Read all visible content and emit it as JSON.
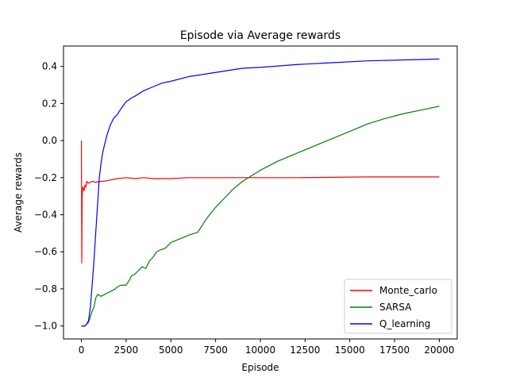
{
  "chart_data": {
    "type": "line",
    "title": "Episode via Average rewards",
    "xlabel": "Episode",
    "ylabel": "Average rewards",
    "xlim": [
      -1000,
      21000
    ],
    "ylim": [
      -1.07,
      0.51
    ],
    "xticks": [
      0,
      2500,
      5000,
      7500,
      10000,
      12500,
      15000,
      17500,
      20000
    ],
    "yticks": [
      -1.0,
      -0.8,
      -0.6,
      -0.4,
      -0.2,
      0.0,
      0.2,
      0.4
    ],
    "grid": false,
    "legend_position": "lower-right",
    "series": [
      {
        "name": "Monte_carlo",
        "color": "#ff0000",
        "points": [
          [
            0,
            0.0
          ],
          [
            10,
            -0.3
          ],
          [
            20,
            -0.66
          ],
          [
            40,
            -0.3
          ],
          [
            80,
            -0.25
          ],
          [
            150,
            -0.27
          ],
          [
            200,
            -0.24
          ],
          [
            250,
            -0.25
          ],
          [
            300,
            -0.22
          ],
          [
            400,
            -0.23
          ],
          [
            600,
            -0.22
          ],
          [
            800,
            -0.225
          ],
          [
            1000,
            -0.22
          ],
          [
            1200,
            -0.22
          ],
          [
            1500,
            -0.215
          ],
          [
            2000,
            -0.205
          ],
          [
            2500,
            -0.2
          ],
          [
            3000,
            -0.205
          ],
          [
            3500,
            -0.2
          ],
          [
            4000,
            -0.205
          ],
          [
            5000,
            -0.205
          ],
          [
            6000,
            -0.2
          ],
          [
            7000,
            -0.2
          ],
          [
            8000,
            -0.2
          ],
          [
            9000,
            -0.2
          ],
          [
            10000,
            -0.2
          ],
          [
            12000,
            -0.2
          ],
          [
            14000,
            -0.198
          ],
          [
            16000,
            -0.196
          ],
          [
            18000,
            -0.196
          ],
          [
            20000,
            -0.196
          ]
        ]
      },
      {
        "name": "SARSA",
        "color": "#008000",
        "points": [
          [
            0,
            -1.0
          ],
          [
            200,
            -1.0
          ],
          [
            400,
            -0.98
          ],
          [
            500,
            -0.95
          ],
          [
            600,
            -0.92
          ],
          [
            700,
            -0.9
          ],
          [
            800,
            -0.85
          ],
          [
            900,
            -0.83
          ],
          [
            1100,
            -0.84
          ],
          [
            1300,
            -0.83
          ],
          [
            1500,
            -0.82
          ],
          [
            1700,
            -0.81
          ],
          [
            1900,
            -0.8
          ],
          [
            2000,
            -0.79
          ],
          [
            2200,
            -0.78
          ],
          [
            2500,
            -0.78
          ],
          [
            2700,
            -0.75
          ],
          [
            2800,
            -0.73
          ],
          [
            3000,
            -0.72
          ],
          [
            3200,
            -0.7
          ],
          [
            3400,
            -0.68
          ],
          [
            3600,
            -0.69
          ],
          [
            3800,
            -0.65
          ],
          [
            4000,
            -0.63
          ],
          [
            4200,
            -0.6
          ],
          [
            4400,
            -0.59
          ],
          [
            4700,
            -0.58
          ],
          [
            5000,
            -0.55
          ],
          [
            5500,
            -0.53
          ],
          [
            6000,
            -0.51
          ],
          [
            6500,
            -0.495
          ],
          [
            7000,
            -0.42
          ],
          [
            7500,
            -0.36
          ],
          [
            8000,
            -0.31
          ],
          [
            8500,
            -0.26
          ],
          [
            9000,
            -0.22
          ],
          [
            9500,
            -0.19
          ],
          [
            10000,
            -0.16
          ],
          [
            11000,
            -0.11
          ],
          [
            12000,
            -0.07
          ],
          [
            13000,
            -0.03
          ],
          [
            14000,
            0.01
          ],
          [
            15000,
            0.05
          ],
          [
            16000,
            0.09
          ],
          [
            17000,
            0.12
          ],
          [
            18000,
            0.145
          ],
          [
            19000,
            0.165
          ],
          [
            20000,
            0.185
          ]
        ]
      },
      {
        "name": "Q_learning",
        "color": "#0000ff",
        "points": [
          [
            0,
            -1.0
          ],
          [
            200,
            -1.0
          ],
          [
            300,
            -0.99
          ],
          [
            400,
            -0.97
          ],
          [
            500,
            -0.9
          ],
          [
            600,
            -0.78
          ],
          [
            700,
            -0.65
          ],
          [
            800,
            -0.5
          ],
          [
            900,
            -0.35
          ],
          [
            1000,
            -0.2
          ],
          [
            1100,
            -0.12
          ],
          [
            1200,
            -0.06
          ],
          [
            1400,
            0.02
          ],
          [
            1600,
            0.08
          ],
          [
            1800,
            0.12
          ],
          [
            2000,
            0.14
          ],
          [
            2200,
            0.17
          ],
          [
            2500,
            0.21
          ],
          [
            2800,
            0.23
          ],
          [
            3000,
            0.24
          ],
          [
            3500,
            0.27
          ],
          [
            4000,
            0.29
          ],
          [
            4500,
            0.31
          ],
          [
            5000,
            0.32
          ],
          [
            6000,
            0.345
          ],
          [
            7000,
            0.36
          ],
          [
            8000,
            0.375
          ],
          [
            9000,
            0.39
          ],
          [
            10000,
            0.395
          ],
          [
            12000,
            0.41
          ],
          [
            14000,
            0.42
          ],
          [
            16000,
            0.43
          ],
          [
            18000,
            0.435
          ],
          [
            20000,
            0.44
          ]
        ]
      }
    ]
  }
}
